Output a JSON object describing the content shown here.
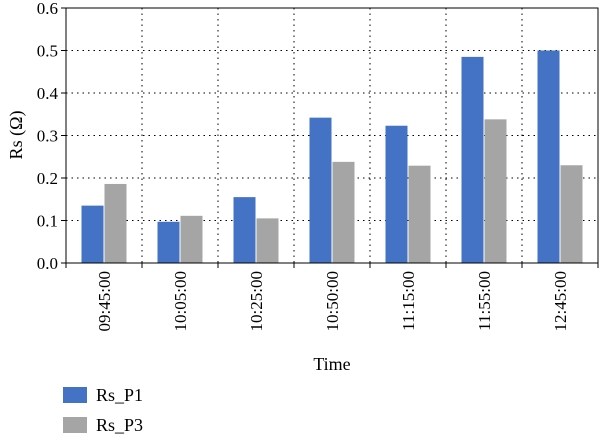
{
  "chart_data": {
    "type": "bar",
    "categories": [
      "09:45:00",
      "10:05:00",
      "10:25:00",
      "10:50:00",
      "11:15:00",
      "11:55:00",
      "12:45:00"
    ],
    "series": [
      {
        "name": "Rs_P1",
        "color": "#4472c4",
        "values": [
          0.135,
          0.097,
          0.155,
          0.342,
          0.323,
          0.485,
          0.5
        ]
      },
      {
        "name": "Rs_P3",
        "color": "#a5a5a5",
        "values": [
          0.186,
          0.111,
          0.105,
          0.238,
          0.229,
          0.338,
          0.23
        ]
      }
    ],
    "xlabel": "Time",
    "ylabel": "Rs (Ω)",
    "ylim": [
      0,
      0.6
    ],
    "yticks": [
      "0.0",
      "0.1",
      "0.2",
      "0.3",
      "0.4",
      "0.5",
      "0.6"
    ],
    "grid": "dotted",
    "legend_position": "bottom-left"
  }
}
